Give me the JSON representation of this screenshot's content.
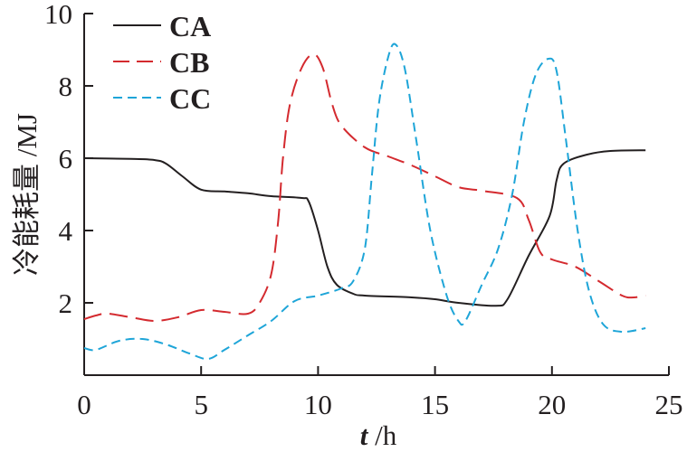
{
  "chart_data": {
    "type": "line",
    "title": "",
    "xlabel_italic": "t",
    "xlabel_unit": " /h",
    "ylabel": "冷能耗量 /MJ",
    "xlim": [
      0,
      25
    ],
    "ylim": [
      0,
      10
    ],
    "xticks": [
      0,
      5,
      10,
      15,
      20,
      25
    ],
    "yticks": [
      2,
      4,
      6,
      8,
      10
    ],
    "xtick_labels": [
      "0",
      "5",
      "10",
      "15",
      "20",
      "25"
    ],
    "ytick_labels": [
      "2",
      "4",
      "6",
      "8",
      "10"
    ],
    "grid": false,
    "legend_position": "top-left",
    "series": [
      {
        "name": "CA",
        "color": "#231f20",
        "style": "solid",
        "x": [
          0,
          2,
          3,
          3.5,
          4.2,
          5,
          6,
          7,
          8,
          9.3,
          9.6,
          10,
          10.4,
          10.8,
          11.5,
          12,
          14,
          15,
          16,
          17.6,
          18.1,
          19,
          19.9,
          20.2,
          20.5,
          21.5,
          22.5,
          24
        ],
        "y": [
          6,
          5.98,
          5.95,
          5.85,
          5.5,
          5.13,
          5.08,
          5.03,
          4.95,
          4.9,
          4.8,
          4.0,
          3.0,
          2.5,
          2.25,
          2.2,
          2.15,
          2.1,
          2.0,
          1.92,
          2.1,
          3.3,
          4.4,
          5.4,
          5.85,
          6.1,
          6.2,
          6.22
        ]
      },
      {
        "name": "CB",
        "color": "#d42a2f",
        "style": "long-dash",
        "x": [
          0,
          0.5,
          1,
          2,
          3,
          4,
          5,
          6,
          7,
          7.5,
          8,
          8.3,
          8.5,
          8.8,
          9.3,
          9.8,
          10.2,
          10.6,
          11,
          12,
          13,
          14,
          15,
          16,
          17,
          18.5,
          19,
          19.5,
          20,
          21,
          22,
          23,
          23.5,
          24
        ],
        "y": [
          1.55,
          1.65,
          1.7,
          1.6,
          1.5,
          1.6,
          1.8,
          1.75,
          1.7,
          2.0,
          2.8,
          4.3,
          6.0,
          7.5,
          8.5,
          8.88,
          8.5,
          7.5,
          6.9,
          6.3,
          6.05,
          5.8,
          5.5,
          5.2,
          5.1,
          4.9,
          4.3,
          3.4,
          3.2,
          3.0,
          2.6,
          2.2,
          2.15,
          2.2
        ]
      },
      {
        "name": "CC",
        "color": "#1ea5d8",
        "style": "short-dash",
        "x": [
          0,
          0.5,
          1.5,
          2.5,
          3.5,
          4.5,
          5.3,
          6,
          7,
          8,
          9,
          10,
          11,
          11.5,
          12,
          12.3,
          12.6,
          13,
          13.3,
          13.7,
          14.2,
          14.8,
          15.5,
          16,
          16.3,
          17,
          17.7,
          18.3,
          18.8,
          19.3,
          19.85,
          20.2,
          20.6,
          21.1,
          21.6,
          22.2,
          23,
          24
        ],
        "y": [
          0.75,
          0.7,
          0.95,
          1.0,
          0.85,
          0.6,
          0.45,
          0.7,
          1.1,
          1.5,
          2.05,
          2.2,
          2.4,
          2.6,
          3.5,
          5.5,
          7.5,
          8.8,
          9.15,
          8.5,
          6.5,
          4.0,
          2.2,
          1.5,
          1.5,
          2.5,
          3.5,
          5.0,
          7.0,
          8.3,
          8.75,
          8.4,
          6.5,
          4.0,
          2.3,
          1.4,
          1.2,
          1.3
        ]
      }
    ]
  }
}
